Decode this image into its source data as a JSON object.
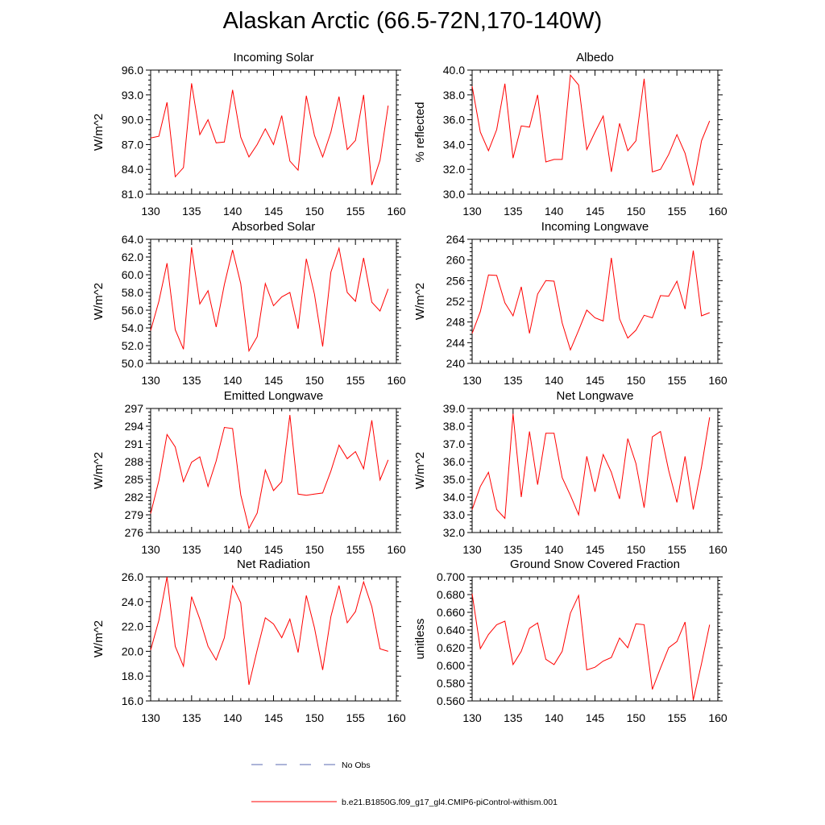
{
  "title": "Alaskan Arctic (66.5-72N,170-140W)",
  "legend": {
    "obs_label": "No Obs",
    "obs_color": "#5a6ab0",
    "model_label": "b.e21.B1850G.f09_g17_gl4.CMIP6-piControl-withism.001",
    "model_color": "#ff0000"
  },
  "chart_data": [
    {
      "type": "line",
      "title": "Incoming Solar",
      "ylabel": "W/m^2",
      "xlim": [
        130,
        160
      ],
      "ylim": [
        81,
        96
      ],
      "xticks": [
        130,
        135,
        140,
        145,
        150,
        155,
        160
      ],
      "xtick_labels": [
        "130",
        "135",
        "140",
        "145",
        "150",
        "155",
        "160"
      ],
      "yticks": [
        81,
        84,
        87,
        90,
        93,
        96
      ],
      "ytick_labels": [
        "81.0",
        "84.0",
        "87.0",
        "90.0",
        "93.0",
        "96.0"
      ],
      "x": [
        130,
        131,
        132,
        133,
        134,
        135,
        136,
        137,
        138,
        139,
        140,
        141,
        142,
        143,
        144,
        145,
        146,
        147,
        148,
        149,
        150,
        151,
        152,
        153,
        154,
        155,
        156,
        157,
        158,
        159
      ],
      "series": [
        {
          "name": "b.e21.B1850G.f09_g17_gl4.CMIP6-piControl-withism.001",
          "values": [
            87.8,
            88.0,
            92.1,
            83.1,
            84.2,
            94.4,
            88.2,
            90.0,
            87.2,
            87.3,
            93.6,
            87.9,
            85.5,
            87.0,
            88.9,
            87.0,
            90.5,
            85.0,
            83.9,
            92.9,
            88.1,
            85.5,
            88.5,
            92.8,
            86.4,
            87.5,
            93.0,
            82.1,
            85.1,
            91.7
          ]
        }
      ]
    },
    {
      "type": "line",
      "title": "Albedo",
      "ylabel": "% reflected",
      "xlim": [
        130,
        160
      ],
      "ylim": [
        30,
        40
      ],
      "xticks": [
        130,
        135,
        140,
        145,
        150,
        155,
        160
      ],
      "xtick_labels": [
        "130",
        "135",
        "140",
        "145",
        "150",
        "155",
        "160"
      ],
      "yticks": [
        30,
        32,
        34,
        36,
        38,
        40
      ],
      "ytick_labels": [
        "30.0",
        "32.0",
        "34.0",
        "36.0",
        "38.0",
        "40.0"
      ],
      "x": [
        130,
        131,
        132,
        133,
        134,
        135,
        136,
        137,
        138,
        139,
        140,
        141,
        142,
        143,
        144,
        145,
        146,
        147,
        148,
        149,
        150,
        151,
        152,
        153,
        154,
        155,
        156,
        157,
        158,
        159
      ],
      "series": [
        {
          "name": "b.e21.B1850G.f09_g17_gl4.CMIP6-piControl-withism.001",
          "values": [
            38.7,
            35.0,
            33.5,
            35.2,
            38.9,
            32.9,
            35.5,
            35.4,
            38.0,
            32.6,
            32.8,
            32.8,
            39.6,
            38.8,
            33.6,
            35.0,
            36.3,
            31.8,
            35.7,
            33.5,
            34.3,
            39.3,
            31.8,
            32.0,
            33.2,
            34.8,
            33.3,
            30.7,
            34.3,
            35.9
          ]
        }
      ]
    },
    {
      "type": "line",
      "title": "Absorbed Solar",
      "ylabel": "W/m^2",
      "xlim": [
        130,
        160
      ],
      "ylim": [
        50,
        64
      ],
      "xticks": [
        130,
        135,
        140,
        145,
        150,
        155,
        160
      ],
      "xtick_labels": [
        "130",
        "135",
        "140",
        "145",
        "150",
        "155",
        "160"
      ],
      "yticks": [
        50,
        52,
        54,
        56,
        58,
        60,
        62,
        64
      ],
      "ytick_labels": [
        "50.0",
        "52.0",
        "54.0",
        "56.0",
        "58.0",
        "60.0",
        "62.0",
        "64.0"
      ],
      "x": [
        130,
        131,
        132,
        133,
        134,
        135,
        136,
        137,
        138,
        139,
        140,
        141,
        142,
        143,
        144,
        145,
        146,
        147,
        148,
        149,
        150,
        151,
        152,
        153,
        154,
        155,
        156,
        157,
        158,
        159
      ],
      "series": [
        {
          "name": "b.e21.B1850G.f09_g17_gl4.CMIP6-piControl-withism.001",
          "values": [
            53.7,
            57.0,
            61.3,
            53.8,
            51.6,
            63.1,
            56.7,
            58.2,
            54.1,
            58.9,
            62.8,
            59.0,
            51.4,
            53.0,
            59.0,
            56.5,
            57.5,
            58.0,
            53.9,
            61.8,
            57.8,
            51.9,
            60.3,
            63.0,
            58.0,
            57.0,
            61.9,
            56.9,
            55.9,
            58.4
          ]
        }
      ]
    },
    {
      "type": "line",
      "title": "Incoming Longwave",
      "ylabel": "W/m^2",
      "xlim": [
        130,
        160
      ],
      "ylim": [
        240,
        264
      ],
      "xticks": [
        130,
        135,
        140,
        145,
        150,
        155,
        160
      ],
      "xtick_labels": [
        "130",
        "135",
        "140",
        "145",
        "150",
        "155",
        "160"
      ],
      "yticks": [
        240,
        244,
        248,
        252,
        256,
        260,
        264
      ],
      "ytick_labels": [
        "240",
        "244",
        "248",
        "252",
        "256",
        "260",
        "264"
      ],
      "x": [
        130,
        131,
        132,
        133,
        134,
        135,
        136,
        137,
        138,
        139,
        140,
        141,
        142,
        143,
        144,
        145,
        146,
        147,
        148,
        149,
        150,
        151,
        152,
        153,
        154,
        155,
        156,
        157,
        158,
        159
      ],
      "series": [
        {
          "name": "b.e21.B1850G.f09_g17_gl4.CMIP6-piControl-withism.001",
          "values": [
            245.8,
            250.0,
            257.1,
            257.0,
            251.7,
            249.2,
            254.8,
            245.8,
            253.4,
            256.0,
            255.9,
            247.8,
            242.6,
            246.4,
            250.3,
            248.8,
            248.2,
            260.4,
            248.6,
            244.9,
            246.4,
            249.3,
            248.8,
            253.1,
            253.0,
            255.9,
            250.5,
            261.8,
            249.2,
            249.8
          ]
        }
      ]
    },
    {
      "type": "line",
      "title": "Emitted Longwave",
      "ylabel": "W/m^2",
      "xlim": [
        130,
        160
      ],
      "ylim": [
        276,
        297
      ],
      "xticks": [
        130,
        135,
        140,
        145,
        150,
        155,
        160
      ],
      "xtick_labels": [
        "130",
        "135",
        "140",
        "145",
        "150",
        "155",
        "160"
      ],
      "yticks": [
        276,
        279,
        282,
        285,
        288,
        291,
        294,
        297
      ],
      "ytick_labels": [
        "276",
        "279",
        "282",
        "285",
        "288",
        "291",
        "294",
        "297"
      ],
      "x": [
        130,
        131,
        132,
        133,
        134,
        135,
        136,
        137,
        138,
        139,
        140,
        141,
        142,
        143,
        144,
        145,
        146,
        147,
        148,
        149,
        150,
        151,
        152,
        153,
        154,
        155,
        156,
        157,
        158,
        159
      ],
      "series": [
        {
          "name": "b.e21.B1850G.f09_g17_gl4.CMIP6-piControl-withism.001",
          "values": [
            279.2,
            284.8,
            292.6,
            290.5,
            284.6,
            287.9,
            288.8,
            283.8,
            288.1,
            293.8,
            293.6,
            282.4,
            276.7,
            279.3,
            286.6,
            283.1,
            284.6,
            295.9,
            282.5,
            282.3,
            282.5,
            282.7,
            286.4,
            290.8,
            288.5,
            289.7,
            286.8,
            295.0,
            284.9,
            288.3
          ]
        }
      ]
    },
    {
      "type": "line",
      "title": "Net Longwave",
      "ylabel": "W/m^2",
      "xlim": [
        130,
        160
      ],
      "ylim": [
        32,
        39
      ],
      "xticks": [
        130,
        135,
        140,
        145,
        150,
        155,
        160
      ],
      "xtick_labels": [
        "130",
        "135",
        "140",
        "145",
        "150",
        "155",
        "160"
      ],
      "yticks": [
        32,
        33,
        34,
        35,
        36,
        37,
        38,
        39
      ],
      "ytick_labels": [
        "32.0",
        "33.0",
        "34.0",
        "35.0",
        "36.0",
        "37.0",
        "38.0",
        "39.0"
      ],
      "x": [
        130,
        131,
        132,
        133,
        134,
        135,
        136,
        137,
        138,
        139,
        140,
        141,
        142,
        143,
        144,
        145,
        146,
        147,
        148,
        149,
        150,
        151,
        152,
        153,
        154,
        155,
        156,
        157,
        158,
        159
      ],
      "series": [
        {
          "name": "b.e21.B1850G.f09_g17_gl4.CMIP6-piControl-withism.001",
          "values": [
            33.3,
            34.6,
            35.4,
            33.3,
            32.8,
            38.7,
            34.0,
            37.7,
            34.7,
            37.6,
            37.6,
            35.1,
            34.1,
            33.0,
            36.3,
            34.3,
            36.4,
            35.4,
            33.9,
            37.3,
            35.9,
            33.4,
            37.4,
            37.7,
            35.5,
            33.7,
            36.3,
            33.3,
            35.7,
            38.5
          ]
        }
      ]
    },
    {
      "type": "line",
      "title": "Net Radiation",
      "ylabel": "W/m^2",
      "xlim": [
        130,
        160
      ],
      "ylim": [
        16,
        26
      ],
      "xticks": [
        130,
        135,
        140,
        145,
        150,
        155,
        160
      ],
      "xtick_labels": [
        "130",
        "135",
        "140",
        "145",
        "150",
        "155",
        "160"
      ],
      "yticks": [
        16,
        18,
        20,
        22,
        24,
        26
      ],
      "ytick_labels": [
        "16.0",
        "18.0",
        "20.0",
        "22.0",
        "24.0",
        "26.0"
      ],
      "x": [
        130,
        131,
        132,
        133,
        134,
        135,
        136,
        137,
        138,
        139,
        140,
        141,
        142,
        143,
        144,
        145,
        146,
        147,
        148,
        149,
        150,
        151,
        152,
        153,
        154,
        155,
        156,
        157,
        158,
        159
      ],
      "series": [
        {
          "name": "b.e21.B1850G.f09_g17_gl4.CMIP6-piControl-withism.001",
          "values": [
            20.1,
            22.5,
            26.0,
            20.4,
            18.8,
            24.4,
            22.6,
            20.4,
            19.3,
            21.1,
            25.3,
            23.9,
            17.3,
            20.1,
            22.7,
            22.2,
            21.1,
            22.6,
            19.9,
            24.5,
            21.9,
            18.5,
            22.8,
            25.3,
            22.3,
            23.2,
            25.6,
            23.6,
            20.2,
            20.0
          ]
        }
      ]
    },
    {
      "type": "line",
      "title": "Ground Snow Covered Fraction",
      "ylabel": "unitless",
      "xlim": [
        130,
        160
      ],
      "ylim": [
        0.56,
        0.7
      ],
      "xticks": [
        130,
        135,
        140,
        145,
        150,
        155,
        160
      ],
      "xtick_labels": [
        "130",
        "135",
        "140",
        "145",
        "150",
        "155",
        "160"
      ],
      "yticks": [
        0.56,
        0.58,
        0.6,
        0.62,
        0.64,
        0.66,
        0.68,
        0.7
      ],
      "ytick_labels": [
        "0.560",
        "0.580",
        "0.600",
        "0.620",
        "0.640",
        "0.660",
        "0.680",
        "0.700"
      ],
      "x": [
        130,
        131,
        132,
        133,
        134,
        135,
        136,
        137,
        138,
        139,
        140,
        141,
        142,
        143,
        144,
        145,
        146,
        147,
        148,
        149,
        150,
        151,
        152,
        153,
        154,
        155,
        156,
        157,
        158,
        159
      ],
      "series": [
        {
          "name": "b.e21.B1850G.f09_g17_gl4.CMIP6-piControl-withism.001",
          "values": [
            0.681,
            0.619,
            0.635,
            0.646,
            0.65,
            0.601,
            0.616,
            0.642,
            0.648,
            0.607,
            0.601,
            0.616,
            0.659,
            0.679,
            0.595,
            0.598,
            0.605,
            0.609,
            0.631,
            0.62,
            0.647,
            0.646,
            0.573,
            0.597,
            0.62,
            0.627,
            0.649,
            0.561,
            0.602,
            0.646
          ]
        }
      ]
    }
  ]
}
